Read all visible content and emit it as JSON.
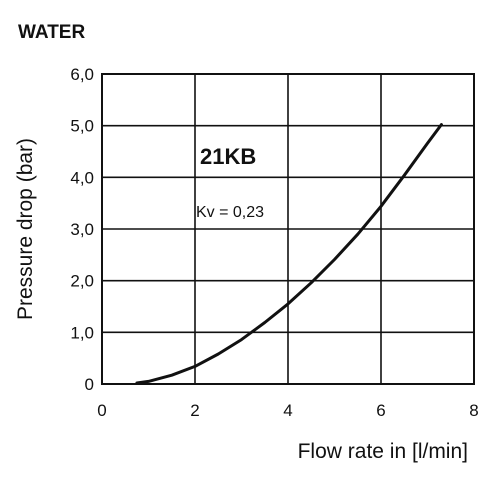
{
  "chart_data": {
    "type": "line",
    "title": "WATER",
    "xlabel": "Flow rate in [l/min]",
    "ylabel": "Pressure drop (bar)",
    "xlim": [
      0,
      8
    ],
    "ylim": [
      0,
      6
    ],
    "x_ticks": [
      0,
      2,
      4,
      6,
      8
    ],
    "x_tick_labels": [
      "0",
      "2",
      "4",
      "6",
      "8"
    ],
    "y_ticks": [
      0,
      1,
      2,
      3,
      4,
      5,
      6
    ],
    "y_tick_labels": [
      "0",
      "1,0",
      "2,0",
      "3,0",
      "4,0",
      "5,0",
      "6,0"
    ],
    "grid": true,
    "series": [
      {
        "name": "21KB",
        "color": "#111111",
        "x": [
          0.75,
          1.0,
          1.5,
          2.0,
          2.5,
          3.0,
          3.5,
          4.0,
          4.5,
          5.0,
          5.5,
          6.0,
          6.5,
          7.0,
          7.3
        ],
        "y": [
          0.02,
          0.05,
          0.17,
          0.34,
          0.58,
          0.86,
          1.19,
          1.55,
          1.96,
          2.41,
          2.9,
          3.44,
          4.04,
          4.66,
          5.02
        ]
      }
    ],
    "annotations": [
      {
        "text": "Kv = 0,23"
      }
    ]
  }
}
